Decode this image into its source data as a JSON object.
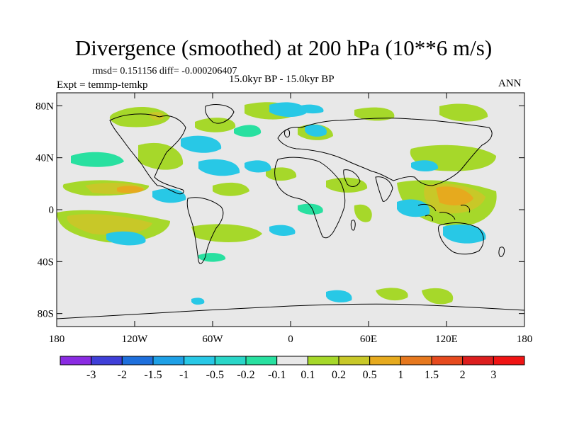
{
  "title": "Divergence (smoothed) at 200 hPa (10**6 m/s)",
  "stats": "rmsd= 0.151156 diff= -0.000206407",
  "experiment": "Expt = temmp-temkp",
  "period": "15.0kyr BP - 15.0kyr BP",
  "season": "ANN",
  "axes": {
    "x_ticks": [
      "180",
      "120W",
      "60W",
      "0",
      "60E",
      "120E",
      "180"
    ],
    "y_ticks": [
      "80N",
      "40N",
      "0",
      "40S",
      "80S"
    ]
  },
  "colorbar": {
    "labels": [
      "-3",
      "-2",
      "-1.5",
      "-1",
      "-0.5",
      "-0.2",
      "-0.1",
      "0.1",
      "0.2",
      "0.5",
      "1",
      "1.5",
      "2",
      "3"
    ],
    "colors": [
      "#8a2be2",
      "#3f3fd8",
      "#1e6fdc",
      "#1ea0e6",
      "#28c8e6",
      "#2ad6c8",
      "#28e0a0",
      "#e8e8e8",
      "#a6d82a",
      "#c8c828",
      "#e6aa1e",
      "#e6781e",
      "#e64a1e",
      "#dc1e1e",
      "#f01414"
    ]
  },
  "map": {
    "ocean_color": "#e8e8e8",
    "coast_color": "#000000"
  }
}
